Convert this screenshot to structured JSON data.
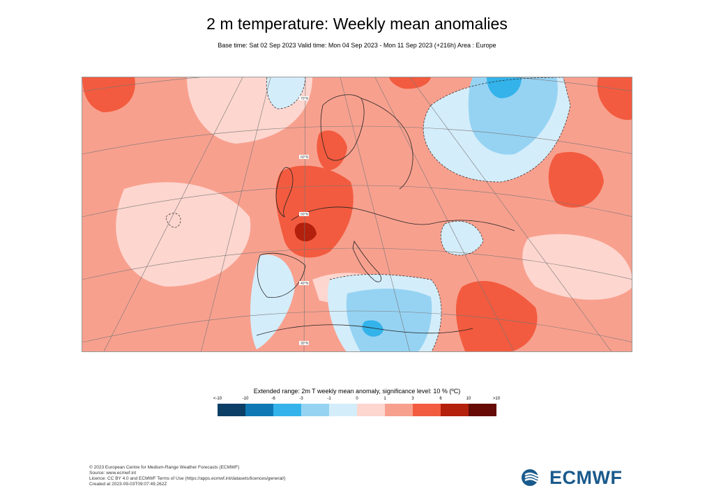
{
  "header": {
    "title": "2 m temperature: Weekly mean anomalies",
    "subtitle": "Base time: Sat 02 Sep 2023 Valid time: Mon 04 Sep 2023 - Mon 11 Sep 2023 (+216h) Area : Europe"
  },
  "map": {
    "area": "Europe",
    "lat_labels": [
      "70°N",
      "60°N",
      "50°N",
      "40°N",
      "30°N"
    ]
  },
  "legend": {
    "title": "Extended range: 2m T weekly mean anomaly, significance level: 10 % (ºC)",
    "ticks": [
      "<-10",
      "-10",
      "-6",
      "-3",
      "-1",
      "0",
      "1",
      "3",
      "6",
      "10",
      ">10"
    ],
    "colors": [
      "#0b3f66",
      "#0f78b4",
      "#34b3ea",
      "#96d3f3",
      "#d4edfa",
      "#fdd6cf",
      "#f8a08e",
      "#f25b3f",
      "#b3200c",
      "#650a05"
    ]
  },
  "footer": {
    "line1": "© 2023 European Centre for Medium-Range Weather Forecasts (ECMWF)",
    "line2": "Source: www.ecmwf.int",
    "line3": "Licence: CC BY 4.0 and ECMWF Terms of Use (https://apps.ecmwf.int/datasets/licences/general/)",
    "line4": "Created at 2023-09-03T09:07:49.262Z"
  },
  "logo": {
    "text": "ECMWF",
    "color": "#1a5a8c"
  }
}
